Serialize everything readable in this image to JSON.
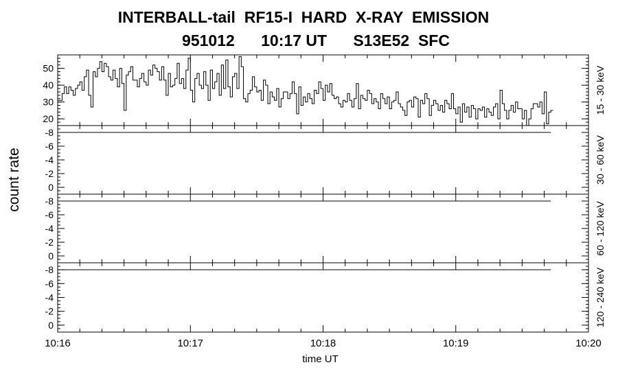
{
  "title_line1": "INTERBALL-tail  RF15-I  HARD  X-RAY  EMISSION",
  "title_line2": "951012      10:17 UT      S13E52  SFC",
  "chart_data": {
    "type": "line",
    "title": "INTERBALL-tail  RF15-I  HARD  X-RAY  EMISSION",
    "subtitle": "951012      10:17 UT      S13E52  SFC",
    "xlabel": "time UT",
    "ylabel": "count rate",
    "x_ticks": [
      "10:16",
      "10:17",
      "10:18",
      "10:19",
      "10:20"
    ],
    "xlim": [
      "10:16",
      "10:20"
    ],
    "panels": [
      {
        "name": "15 - 30 keV",
        "ylim": [
          16,
          58
        ],
        "yticks": [
          "20",
          "30",
          "40",
          "50"
        ],
        "ytick_values": [
          20,
          30,
          40,
          50
        ],
        "x_seconds": [
          0,
          1,
          2,
          3,
          4,
          5,
          6,
          7,
          8,
          9,
          10,
          11,
          12,
          13,
          14,
          15,
          16,
          17,
          18,
          19,
          20,
          21,
          22,
          23,
          24,
          25,
          26,
          27,
          28,
          29,
          30,
          31,
          32,
          33,
          34,
          35,
          36,
          37,
          38,
          39,
          40,
          41,
          42,
          43,
          44,
          45,
          46,
          47,
          48,
          49,
          50,
          51,
          52,
          53,
          54,
          55,
          56,
          57,
          58,
          59,
          60,
          61,
          62,
          63,
          64,
          65,
          66,
          67,
          68,
          69,
          70,
          71,
          72,
          73,
          74,
          75,
          76,
          77,
          78,
          79,
          80,
          81,
          82,
          83,
          84,
          85,
          86,
          87,
          88,
          89,
          90,
          91,
          92,
          93,
          94,
          95,
          96,
          97,
          98,
          99,
          100,
          101,
          102,
          103,
          104,
          105,
          106,
          107,
          108,
          109,
          110,
          111,
          112,
          113,
          114,
          115,
          116,
          117,
          118,
          119,
          120,
          121,
          122,
          123,
          124,
          125,
          126,
          127,
          128,
          129,
          130,
          131,
          132,
          133,
          134,
          135,
          136,
          137,
          138,
          139,
          140,
          141,
          142,
          143,
          144,
          145,
          146,
          147,
          148,
          149,
          150,
          151,
          152,
          153,
          154,
          155,
          156,
          157,
          158,
          159,
          160,
          161,
          162,
          163,
          164,
          165,
          166,
          167,
          168,
          169,
          170,
          171,
          172,
          173,
          174,
          175,
          176,
          177,
          178,
          179,
          180,
          181,
          182,
          183,
          184,
          185,
          186,
          187,
          188,
          189,
          190,
          191,
          192,
          193,
          194,
          195,
          196,
          197,
          198,
          199,
          200,
          201,
          202,
          203,
          204,
          205,
          206,
          207,
          208,
          209,
          210,
          211,
          212,
          213,
          214,
          215,
          216,
          217,
          218,
          219,
          220,
          221,
          222,
          223
        ],
        "values": [
          31,
          31,
          35,
          39,
          35,
          39,
          37,
          34,
          38,
          40,
          42,
          37,
          45,
          49,
          34,
          27,
          48,
          45,
          50,
          54,
          48,
          53,
          51,
          45,
          43,
          49,
          44,
          39,
          50,
          41,
          25,
          46,
          48,
          51,
          43,
          43,
          39,
          44,
          47,
          42,
          40,
          49,
          46,
          52,
          50,
          48,
          43,
          51,
          43,
          34,
          47,
          39,
          40,
          44,
          53,
          41,
          44,
          38,
          49,
          56,
          37,
          30,
          44,
          47,
          40,
          38,
          48,
          40,
          31,
          49,
          38,
          42,
          47,
          34,
          52,
          38,
          55,
          39,
          33,
          45,
          47,
          38,
          57,
          51,
          32,
          30,
          35,
          37,
          45,
          39,
          36,
          37,
          31,
          43,
          40,
          29,
          36,
          33,
          31,
          38,
          27,
          32,
          36,
          36,
          32,
          35,
          42,
          35,
          23,
          39,
          28,
          33,
          30,
          35,
          32,
          29,
          37,
          35,
          42,
          38,
          31,
          40,
          36,
          41,
          34,
          32,
          33,
          29,
          27,
          31,
          30,
          35,
          31,
          27,
          32,
          41,
          26,
          34,
          32,
          31,
          37,
          35,
          29,
          32,
          30,
          26,
          35,
          32,
          29,
          33,
          26,
          30,
          31,
          36,
          29,
          27,
          25,
          22,
          30,
          31,
          27,
          33,
          32,
          21,
          31,
          29,
          35,
          32,
          22,
          28,
          31,
          29,
          25,
          28,
          24,
          31,
          29,
          26,
          35,
          26,
          23,
          27,
          18,
          29,
          24,
          27,
          21,
          28,
          26,
          20,
          26,
          25,
          27,
          21,
          26,
          24,
          22,
          27,
          29,
          20,
          37,
          29,
          25,
          20,
          25,
          28,
          24,
          30,
          26,
          26,
          20,
          25,
          16,
          20,
          26,
          29,
          29,
          27,
          30,
          23,
          36,
          17,
          24,
          25
        ]
      },
      {
        "name": "30 - 60 keV",
        "ylim": [
          -1,
          9
        ],
        "yticks": [
          "-8",
          "-6",
          "-4",
          "-2",
          "0"
        ],
        "ytick_values": [
          8,
          6,
          4,
          2,
          0
        ],
        "constant_value": 8
      },
      {
        "name": "60 - 120 keV",
        "ylim": [
          -1,
          9
        ],
        "yticks": [
          "-8",
          "-6",
          "-4",
          "-2",
          "0"
        ],
        "ytick_values": [
          8,
          6,
          4,
          2,
          0
        ],
        "constant_value": 8
      },
      {
        "name": "120 - 240 keV",
        "ylim": [
          -1,
          9
        ],
        "yticks": [
          "-8",
          "-6",
          "-4",
          "-2",
          "0"
        ],
        "ytick_values": [
          8,
          6,
          4,
          2,
          0
        ],
        "constant_value": 8
      }
    ],
    "grid": false,
    "colors": {
      "line": "#000000",
      "background": "#ffffff"
    }
  }
}
